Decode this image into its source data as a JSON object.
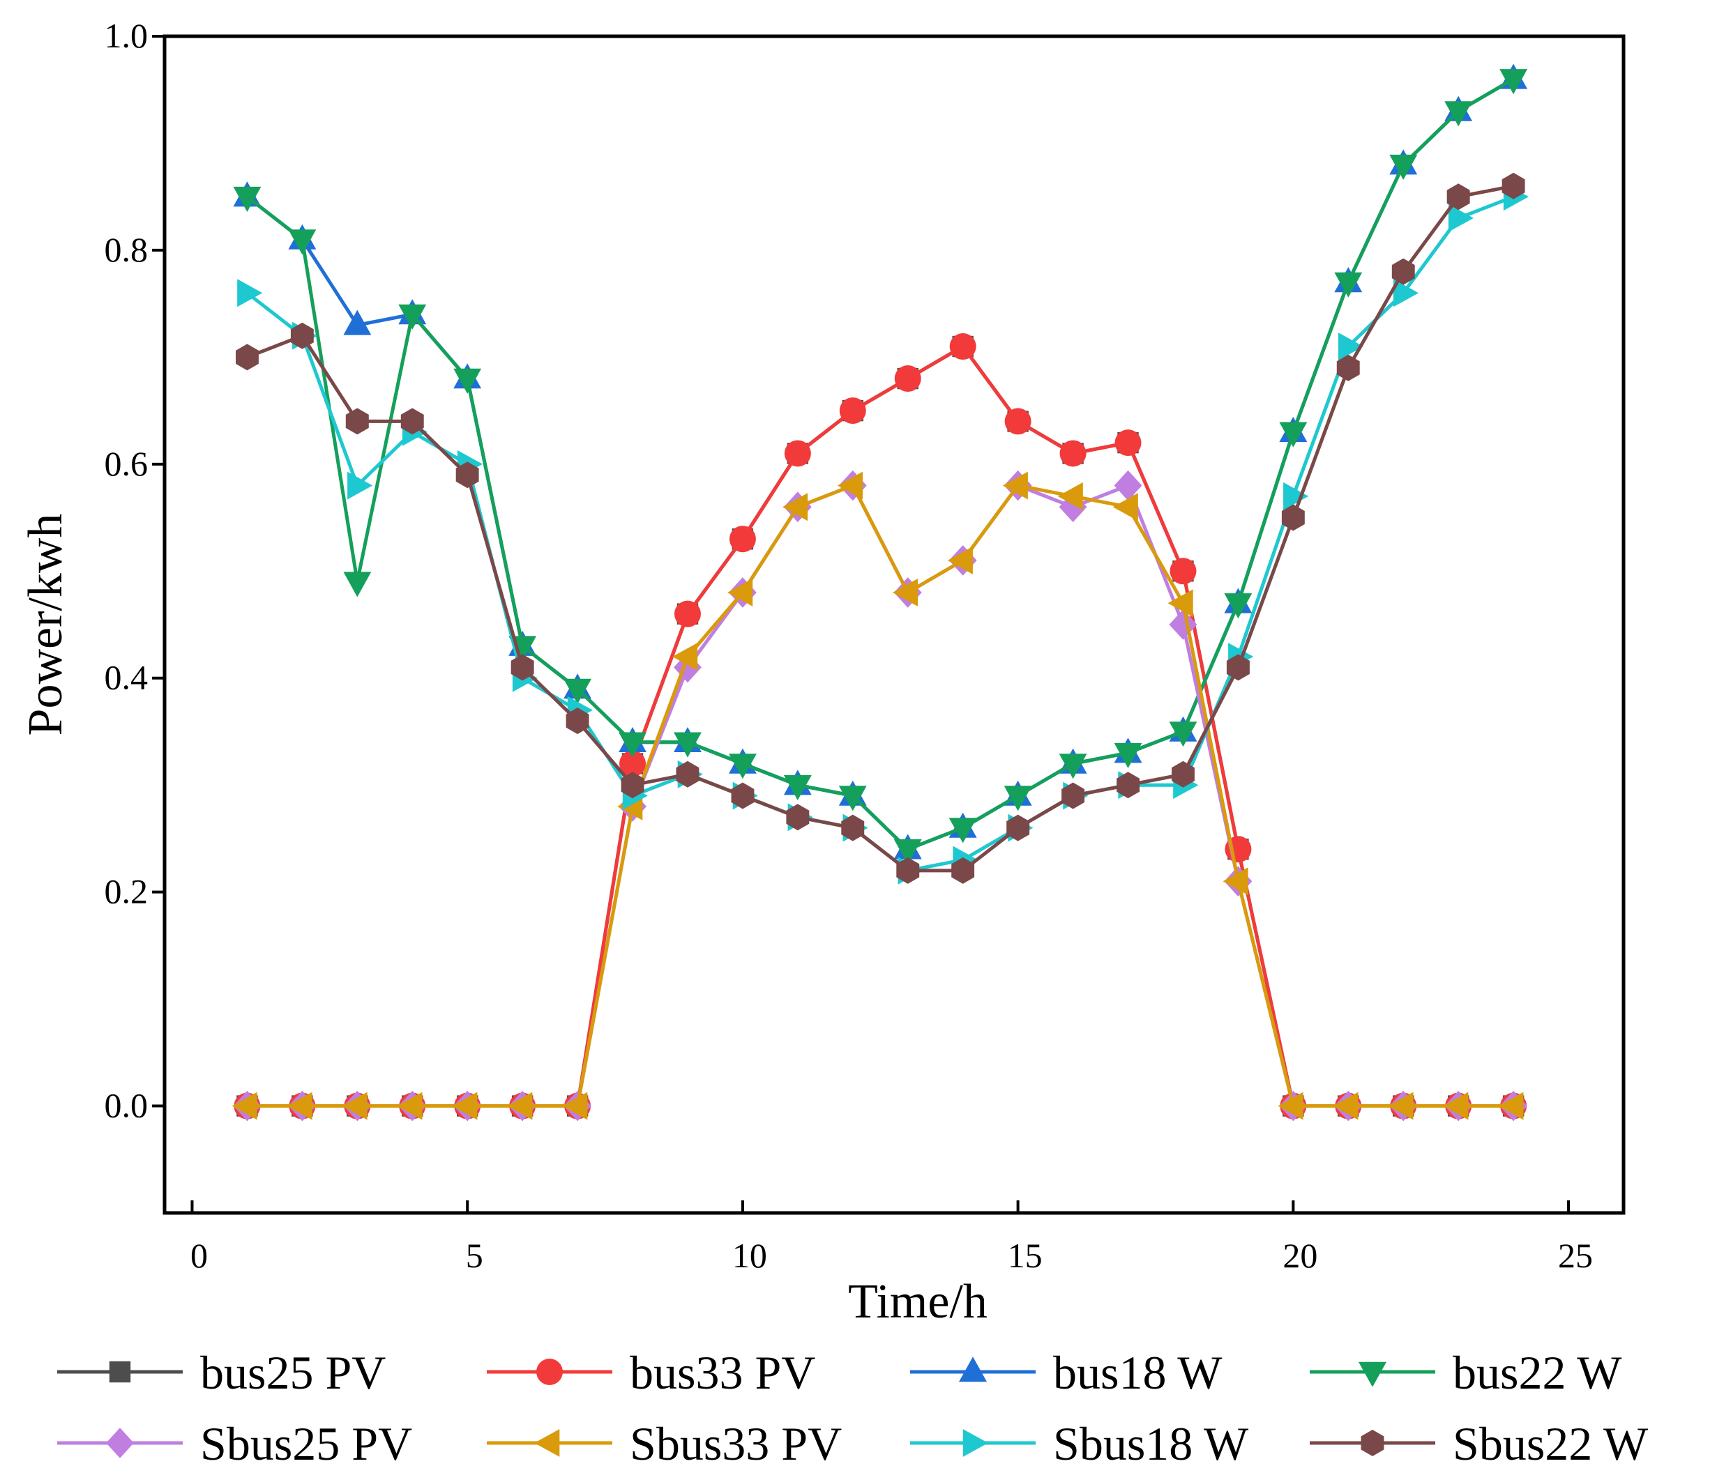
{
  "chart_data": {
    "type": "line",
    "title": "",
    "xlabel": "Time/h",
    "ylabel": "Power/kwh",
    "xlim": [
      -0.5,
      26
    ],
    "ylim": [
      -0.1,
      1.0
    ],
    "xticks": [
      0,
      5,
      10,
      15,
      20,
      25
    ],
    "xtick_labels": [
      "0",
      "5",
      "10",
      "15",
      "20",
      "25"
    ],
    "yticks": [
      0.0,
      0.2,
      0.4,
      0.6,
      0.8,
      1.0
    ],
    "ytick_labels": [
      "0.0",
      "0.2",
      "0.4",
      "0.6",
      "0.8",
      "1.0"
    ],
    "grid": false,
    "legend_position": "bottom",
    "x": [
      1,
      2,
      3,
      4,
      5,
      6,
      7,
      8,
      9,
      10,
      11,
      12,
      13,
      14,
      15,
      16,
      17,
      18,
      19,
      20,
      21,
      22,
      23,
      24
    ],
    "series": [
      {
        "name": "bus25 PV",
        "color": "#4d4d4d",
        "marker": "square",
        "values": [
          0,
          0,
          0,
          0,
          0,
          0,
          0,
          0.32,
          0.46,
          0.53,
          0.61,
          0.65,
          0.68,
          0.71,
          0.64,
          0.61,
          0.62,
          0.5,
          0.24,
          0,
          0,
          0,
          0,
          0
        ]
      },
      {
        "name": "bus33 PV",
        "color": "#f23a3a",
        "marker": "circle",
        "values": [
          0,
          0,
          0,
          0,
          0,
          0,
          0,
          0.32,
          0.46,
          0.53,
          0.61,
          0.65,
          0.68,
          0.71,
          0.64,
          0.61,
          0.62,
          0.5,
          0.24,
          0,
          0,
          0,
          0,
          0
        ]
      },
      {
        "name": "bus18 W",
        "color": "#1f6fd6",
        "marker": "triangle-up",
        "values": [
          0.85,
          0.81,
          0.73,
          0.74,
          0.68,
          0.43,
          0.39,
          0.34,
          0.34,
          0.32,
          0.3,
          0.29,
          0.24,
          0.26,
          0.29,
          0.32,
          0.33,
          0.35,
          0.47,
          0.63,
          0.77,
          0.88,
          0.93,
          0.96
        ]
      },
      {
        "name": "bus22 W",
        "color": "#14a05a",
        "marker": "triangle-down",
        "values": [
          0.85,
          0.81,
          0.49,
          0.74,
          0.68,
          0.43,
          0.39,
          0.34,
          0.34,
          0.32,
          0.3,
          0.29,
          0.24,
          0.26,
          0.29,
          0.32,
          0.33,
          0.35,
          0.47,
          0.63,
          0.77,
          0.88,
          0.93,
          0.96
        ]
      },
      {
        "name": "Sbus25 PV",
        "color": "#c07ee0",
        "marker": "diamond",
        "values": [
          0,
          0,
          0,
          0,
          0,
          0,
          0,
          0.28,
          0.41,
          0.48,
          0.56,
          0.58,
          0.48,
          0.51,
          0.58,
          0.56,
          0.58,
          0.45,
          0.21,
          0,
          0,
          0,
          0,
          0
        ]
      },
      {
        "name": "Sbus33 PV",
        "color": "#d99a0b",
        "marker": "triangle-left",
        "values": [
          0,
          0,
          0,
          0,
          0,
          0,
          0,
          0.28,
          0.42,
          0.48,
          0.56,
          0.58,
          0.48,
          0.51,
          0.58,
          0.57,
          0.56,
          0.47,
          0.21,
          0,
          0,
          0,
          0,
          0
        ]
      },
      {
        "name": "Sbus18 W",
        "color": "#1ec8d0",
        "marker": "triangle-right",
        "values": [
          0.76,
          0.72,
          0.58,
          0.63,
          0.6,
          0.4,
          0.37,
          0.29,
          0.31,
          0.29,
          0.27,
          0.26,
          0.22,
          0.23,
          0.26,
          0.29,
          0.3,
          0.3,
          0.42,
          0.57,
          0.71,
          0.76,
          0.83,
          0.85
        ]
      },
      {
        "name": "Sbus22 W",
        "color": "#7a4848",
        "marker": "hexagon",
        "values": [
          0.7,
          0.72,
          0.64,
          0.64,
          0.59,
          0.41,
          0.36,
          0.3,
          0.31,
          0.29,
          0.27,
          0.26,
          0.22,
          0.22,
          0.26,
          0.29,
          0.3,
          0.31,
          0.41,
          0.55,
          0.69,
          0.78,
          0.85,
          0.86
        ]
      }
    ]
  }
}
